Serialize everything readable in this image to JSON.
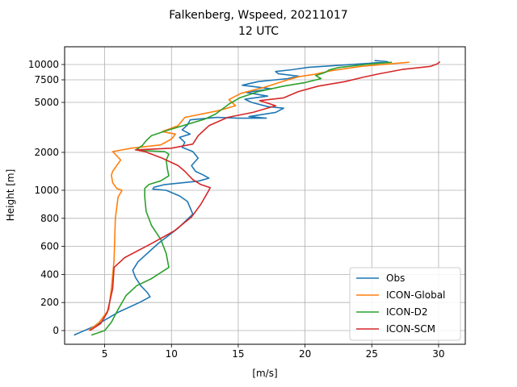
{
  "chart_data": {
    "type": "line",
    "title": [
      "Falkenberg, Wspeed, 20211017",
      "12 UTC"
    ],
    "xlabel": "[m/s]",
    "ylabel": "Height [m]",
    "xlim": [
      2,
      32
    ],
    "xticks": [
      5,
      10,
      15,
      20,
      25,
      30
    ],
    "yticks": [
      {
        "label": "0",
        "height": 0
      },
      {
        "label": "200",
        "height": 200
      },
      {
        "label": "400",
        "height": 400
      },
      {
        "label": "600",
        "height": 600
      },
      {
        "label": "800",
        "height": 800
      },
      {
        "label": "1000",
        "height": 1000
      },
      {
        "label": "2000",
        "height": 2000
      },
      {
        "label": "5000",
        "height": 5000
      },
      {
        "label": "7500",
        "height": 7500
      },
      {
        "label": "10000",
        "height": 10000
      }
    ],
    "grid": true,
    "legend": "lower right",
    "series": [
      {
        "name": "Obs",
        "color": "#1f77b4",
        "points": [
          [
            2.7,
            -40
          ],
          [
            4.2,
            30
          ],
          [
            6.0,
            130
          ],
          [
            7.6,
            200
          ],
          [
            8.4,
            240
          ],
          [
            8.2,
            270
          ],
          [
            7.7,
            320
          ],
          [
            7.3,
            380
          ],
          [
            7.1,
            430
          ],
          [
            7.5,
            490
          ],
          [
            9.0,
            620
          ],
          [
            10.5,
            730
          ],
          [
            11.6,
            830
          ],
          [
            11.2,
            920
          ],
          [
            10.6,
            960
          ],
          [
            9.6,
            1000
          ],
          [
            8.6,
            1030
          ],
          [
            8.7,
            1080
          ],
          [
            9.5,
            1150
          ],
          [
            12.0,
            1240
          ],
          [
            12.8,
            1320
          ],
          [
            12.4,
            1400
          ],
          [
            11.8,
            1500
          ],
          [
            11.5,
            1650
          ],
          [
            12.0,
            1850
          ],
          [
            11.6,
            2050
          ],
          [
            10.8,
            2300
          ],
          [
            11.0,
            2600
          ],
          [
            10.6,
            2900
          ],
          [
            11.4,
            3100
          ],
          [
            10.8,
            3350
          ],
          [
            11.2,
            3650
          ],
          [
            11.4,
            3950
          ],
          [
            13.4,
            4100
          ],
          [
            15.0,
            4050
          ],
          [
            17.1,
            4050
          ],
          [
            15.8,
            4150
          ],
          [
            17.8,
            4400
          ],
          [
            18.4,
            4650
          ],
          [
            17.2,
            4750
          ],
          [
            16.0,
            5000
          ],
          [
            15.5,
            5350
          ],
          [
            17.2,
            5700
          ],
          [
            15.6,
            6100
          ],
          [
            17.5,
            6500
          ],
          [
            15.3,
            6900
          ],
          [
            16.5,
            7300
          ],
          [
            18.7,
            7700
          ],
          [
            19.5,
            8100
          ],
          [
            18.0,
            8500
          ],
          [
            17.8,
            8850
          ],
          [
            19.0,
            9150
          ],
          [
            20.3,
            9550
          ],
          [
            24.8,
            10200
          ],
          [
            26.2,
            10500
          ],
          [
            25.2,
            10700
          ]
        ]
      },
      {
        "name": "ICON-Global",
        "color": "#ff7f0e",
        "points": [
          [
            3.8,
            0
          ],
          [
            4.6,
            60
          ],
          [
            5.3,
            150
          ],
          [
            5.5,
            300
          ],
          [
            5.7,
            500
          ],
          [
            5.8,
            800
          ],
          [
            6.0,
            950
          ],
          [
            6.3,
            1000
          ],
          [
            5.9,
            1050
          ],
          [
            5.6,
            1200
          ],
          [
            5.5,
            1400
          ],
          [
            5.6,
            1500
          ],
          [
            6.0,
            1700
          ],
          [
            6.2,
            1800
          ],
          [
            5.6,
            2050
          ],
          [
            7.0,
            2250
          ],
          [
            9.2,
            2450
          ],
          [
            10.0,
            2800
          ],
          [
            10.3,
            3100
          ],
          [
            9.3,
            3250
          ],
          [
            10.5,
            3600
          ],
          [
            11.0,
            4100
          ],
          [
            13.5,
            4500
          ],
          [
            14.8,
            4800
          ],
          [
            14.3,
            5300
          ],
          [
            15.2,
            6000
          ],
          [
            17.0,
            6700
          ],
          [
            18.5,
            7400
          ],
          [
            19.5,
            8000
          ],
          [
            20.7,
            8400
          ],
          [
            22.0,
            9000
          ],
          [
            24.2,
            9700
          ],
          [
            27.8,
            10400
          ]
        ]
      },
      {
        "name": "ICON-D2",
        "color": "#2ca02c",
        "points": [
          [
            4.0,
            -40
          ],
          [
            5.0,
            0
          ],
          [
            5.5,
            60
          ],
          [
            6.0,
            150
          ],
          [
            6.6,
            250
          ],
          [
            7.4,
            320
          ],
          [
            8.5,
            370
          ],
          [
            9.8,
            450
          ],
          [
            9.6,
            550
          ],
          [
            9.2,
            650
          ],
          [
            8.5,
            750
          ],
          [
            8.1,
            850
          ],
          [
            8.0,
            950
          ],
          [
            8.0,
            1050
          ],
          [
            8.3,
            1150
          ],
          [
            9.2,
            1250
          ],
          [
            9.8,
            1380
          ],
          [
            9.7,
            1550
          ],
          [
            9.6,
            1800
          ],
          [
            9.8,
            1950
          ],
          [
            9.5,
            2050
          ],
          [
            8.0,
            2100
          ],
          [
            7.4,
            2200
          ],
          [
            7.8,
            2400
          ],
          [
            8.1,
            2700
          ],
          [
            8.5,
            3000
          ],
          [
            9.6,
            3300
          ],
          [
            12.5,
            4000
          ],
          [
            13.3,
            4300
          ],
          [
            14.3,
            4900
          ],
          [
            15.1,
            5500
          ],
          [
            16.5,
            6200
          ],
          [
            18.4,
            6800
          ],
          [
            20.0,
            7200
          ],
          [
            21.2,
            7700
          ],
          [
            20.8,
            8200
          ],
          [
            21.5,
            8700
          ],
          [
            21.8,
            9100
          ],
          [
            22.5,
            9500
          ],
          [
            24.5,
            10000
          ],
          [
            26.5,
            10400
          ]
        ]
      },
      {
        "name": "ICON-SCM",
        "color": "#d62728",
        "points": [
          [
            3.9,
            0
          ],
          [
            4.7,
            50
          ],
          [
            5.2,
            130
          ],
          [
            5.6,
            300
          ],
          [
            5.7,
            450
          ],
          [
            6.5,
            520
          ],
          [
            8.5,
            620
          ],
          [
            10.2,
            710
          ],
          [
            11.5,
            810
          ],
          [
            12.2,
            900
          ],
          [
            12.8,
            1000
          ],
          [
            12.9,
            1070
          ],
          [
            12.2,
            1150
          ],
          [
            11.6,
            1280
          ],
          [
            11.0,
            1500
          ],
          [
            10.5,
            1650
          ],
          [
            9.3,
            1850
          ],
          [
            8.0,
            2050
          ],
          [
            7.3,
            2150
          ],
          [
            10.0,
            2250
          ],
          [
            11.6,
            2500
          ],
          [
            12.0,
            3000
          ],
          [
            12.8,
            3600
          ],
          [
            14.2,
            4100
          ],
          [
            16.1,
            4400
          ],
          [
            17.8,
            4800
          ],
          [
            16.6,
            5200
          ],
          [
            18.4,
            5500
          ],
          [
            19.5,
            6200
          ],
          [
            21.0,
            6800
          ],
          [
            23.0,
            7300
          ],
          [
            24.3,
            7900
          ],
          [
            25.6,
            8500
          ],
          [
            27.3,
            9200
          ],
          [
            29.4,
            9700
          ],
          [
            29.9,
            10100
          ],
          [
            30.1,
            10500
          ]
        ]
      }
    ]
  }
}
